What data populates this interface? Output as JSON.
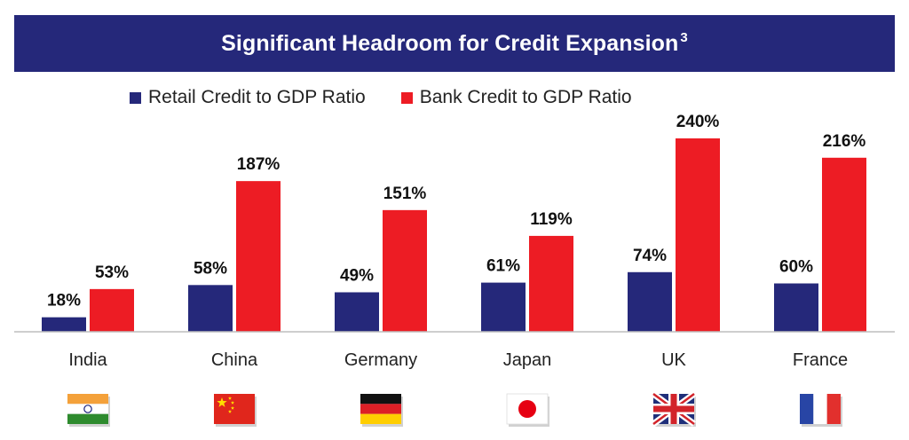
{
  "header": {
    "title": "Significant Headroom for Credit Expansion",
    "title_superscript": "3",
    "background": "#25287a"
  },
  "chart_data": {
    "type": "bar",
    "categories": [
      "India",
      "China",
      "Germany",
      "Japan",
      "UK",
      "France"
    ],
    "series": [
      {
        "name": "Retail Credit to GDP Ratio",
        "values": [
          18,
          58,
          49,
          61,
          74,
          60
        ],
        "color": "#25287a"
      },
      {
        "name": "Bank Credit to GDP Ratio",
        "values": [
          53,
          187,
          151,
          119,
          240,
          216
        ],
        "color": "#ed1c24"
      }
    ],
    "value_labels": {
      "retail": [
        "18%",
        "58%",
        "49%",
        "61%",
        "74%",
        "60%"
      ],
      "bank": [
        "53%",
        "187%",
        "151%",
        "119%",
        "240%",
        "216%"
      ]
    },
    "title": "Significant Headroom for Credit Expansion",
    "xlabel": "",
    "ylabel": "",
    "ylim": [
      0,
      240
    ],
    "grid": false,
    "legend": "top",
    "flags": [
      "india-flag-icon",
      "china-flag-icon",
      "germany-flag-icon",
      "japan-flag-icon",
      "uk-flag-icon",
      "france-flag-icon"
    ]
  }
}
